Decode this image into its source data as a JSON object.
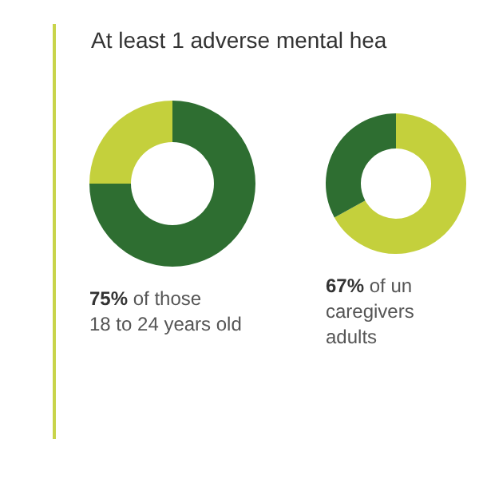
{
  "chart_data": [
    {
      "type": "donut",
      "title": "At least 1 adverse mental hea",
      "categories": [
        null,
        null
      ],
      "values": [
        75,
        25
      ],
      "colors": [
        "#2e6e31",
        "#c4d03c"
      ],
      "annotations": [
        "75% of those\n18 to 24 years old"
      ]
    },
    {
      "type": "donut",
      "categories": [
        null,
        null
      ],
      "values": [
        67,
        33
      ],
      "colors": [
        "#c4d03c",
        "#2e6e31"
      ],
      "annotations": [
        "67% of un\ncaregivers\nadults"
      ]
    }
  ]
}
